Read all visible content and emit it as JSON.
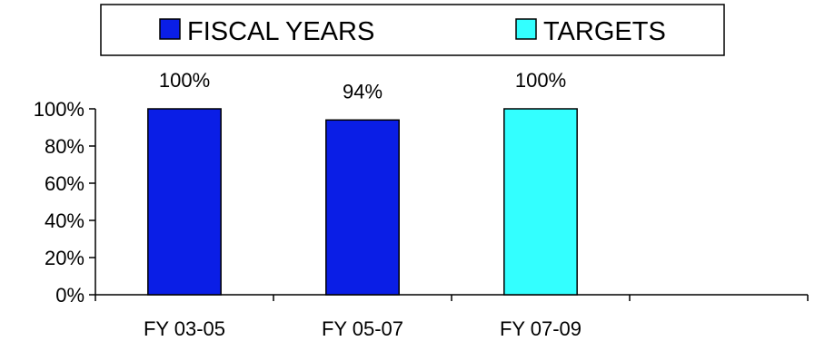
{
  "chart_data": {
    "type": "bar",
    "categories": [
      "FY 03-05",
      "FY 05-07",
      "FY 07-09",
      ""
    ],
    "values": [
      100,
      94,
      100,
      null
    ],
    "value_labels": [
      "100%",
      "94%",
      "100%",
      ""
    ],
    "bar_kind": [
      "fiscal",
      "fiscal",
      "target",
      null
    ],
    "series": [
      {
        "name": "FISCAL YEARS",
        "color": "#0A1EE6"
      },
      {
        "name": "TARGETS",
        "color": "#33FFFF"
      }
    ],
    "ylim": [
      0,
      100
    ],
    "yticks": [
      0,
      20,
      40,
      60,
      80,
      100
    ],
    "ytick_labels": [
      "0%",
      "20%",
      "40%",
      "60%",
      "80%",
      "100%"
    ],
    "legend_position": "top",
    "grid": false
  },
  "colors": {
    "axis": "#000000",
    "bar_border": "#000000"
  }
}
